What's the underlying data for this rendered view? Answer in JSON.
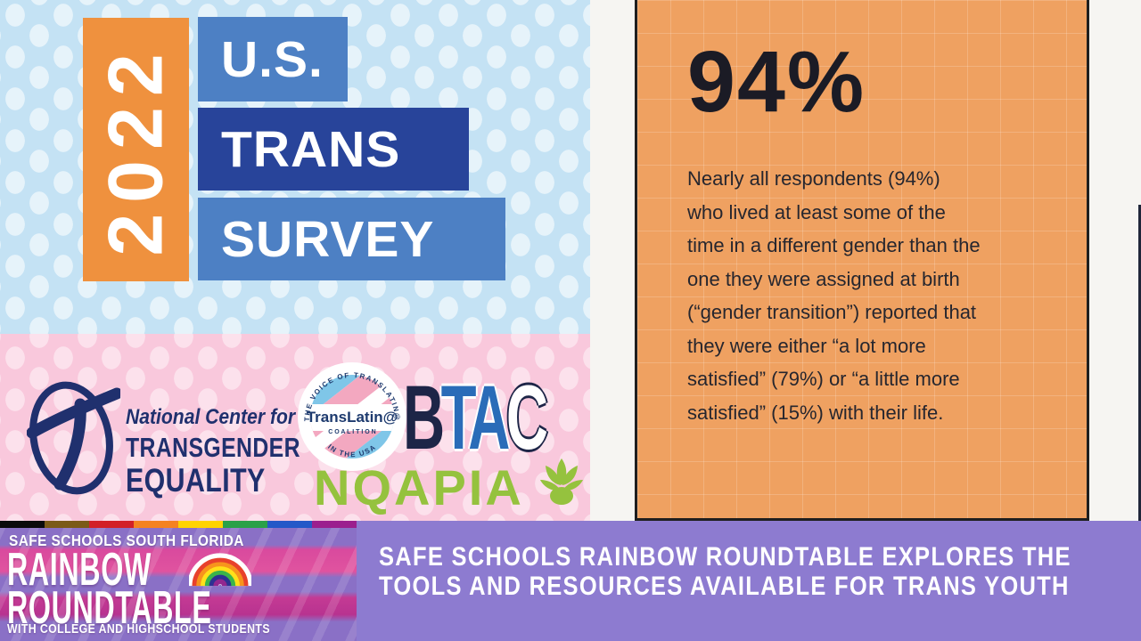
{
  "badge": {
    "year": "2022",
    "us": "U.S.",
    "trans": "TRANS",
    "survey": "SURVEY"
  },
  "stat_card": {
    "headline": "94%",
    "body": "Nearly all respondents (94%) who lived at least some of the time in a different gender than the one they were assigned at birth (“gender transition”) reported that they were either “a lot more satisfied” (79%) or “a little more satisfied” (15%) with their life."
  },
  "logos": {
    "ncte": {
      "monogram": "T",
      "line1": "National Center for",
      "line2": "TRANSGENDER",
      "line3": "EQUALITY"
    },
    "translatina": {
      "arc_top": "THE VOICE OF TRANSLATIN@",
      "name": "TransLatin@",
      "coalition": "C O A L I T I O N",
      "arc_bottom": "IN THE USA"
    },
    "btac": {
      "b": "B",
      "t": "T",
      "a": "A",
      "c": "C"
    },
    "nqapia": {
      "name": "NQAPIA"
    }
  },
  "banner": {
    "left": {
      "top": "SAFE SCHOOLS SOUTH FLORIDA",
      "title1": "RAINBOW",
      "title2": "ROUNDTABLE",
      "bottom": "WITH COLLEGE AND HIGHSCHOOL STUDENTS"
    },
    "right": {
      "line1": "SAFE SCHOOLS RAINBOW ROUNDTABLE EXPLORES THE",
      "line2": "TOOLS AND RESOURCES AVAILABLE FOR TRANS YOUTH"
    }
  },
  "colors": {
    "polka_blue_bg": "#c4e2f4",
    "polka_pink_bg": "#f9c8dc",
    "badge_orange": "#ef913e",
    "badge_blue": "#4d80c4",
    "badge_navy": "#28449a",
    "card_orange": "#efa161",
    "card_border": "#1f1f1f",
    "banner_purple": "#8d7bd0",
    "ncte_navy": "#20306e",
    "nqapia_green": "#95c23e",
    "btac_navy": "#1d2547",
    "btac_blue": "#2a6cb8",
    "pride_strip": [
      "#0b0b0b",
      "#7b5a17",
      "#d22027",
      "#f58220",
      "#ffd300",
      "#2aa148",
      "#2458c8",
      "#9b1f8e"
    ]
  }
}
